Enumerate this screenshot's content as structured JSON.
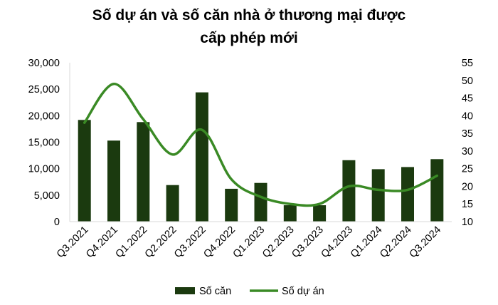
{
  "chart_data": {
    "type": "bar+line",
    "title_line1": "Số dự án và số căn nhà ở thương mại được",
    "title_line2": "cấp phép mới",
    "categories": [
      "Q3.2021",
      "Q4.2021",
      "Q1.2022",
      "Q2.2022",
      "Q3.2022",
      "Q4.2022",
      "Q1.2023",
      "Q2.2023",
      "Q3.2023",
      "Q4.2023",
      "Q1.2024",
      "Q2.2024",
      "Q3.2024"
    ],
    "series": [
      {
        "name": "Số căn",
        "type": "bar",
        "axis": "left",
        "color": "#1b3a0f",
        "values": [
          19200,
          15300,
          18800,
          6900,
          24400,
          6200,
          7300,
          3100,
          3100,
          11600,
          9900,
          10300,
          11800
        ]
      },
      {
        "name": "Số dự án",
        "type": "line",
        "axis": "right",
        "color": "#3a8a25",
        "smooth": true,
        "values": [
          38,
          49,
          39,
          29,
          36,
          22,
          17,
          15,
          15,
          20,
          19,
          19,
          23
        ]
      }
    ],
    "y_left": {
      "min": 0,
      "max": 30000,
      "step": 5000,
      "tick_labels": [
        "0",
        "5,000",
        "10,000",
        "15,000",
        "20,000",
        "25,000",
        "30,000"
      ]
    },
    "y_right": {
      "min": 10,
      "max": 55,
      "step": 5,
      "tick_labels": [
        "10",
        "15",
        "20",
        "25",
        "30",
        "35",
        "40",
        "45",
        "50",
        "55"
      ]
    },
    "grid": false,
    "legend_position": "bottom"
  }
}
